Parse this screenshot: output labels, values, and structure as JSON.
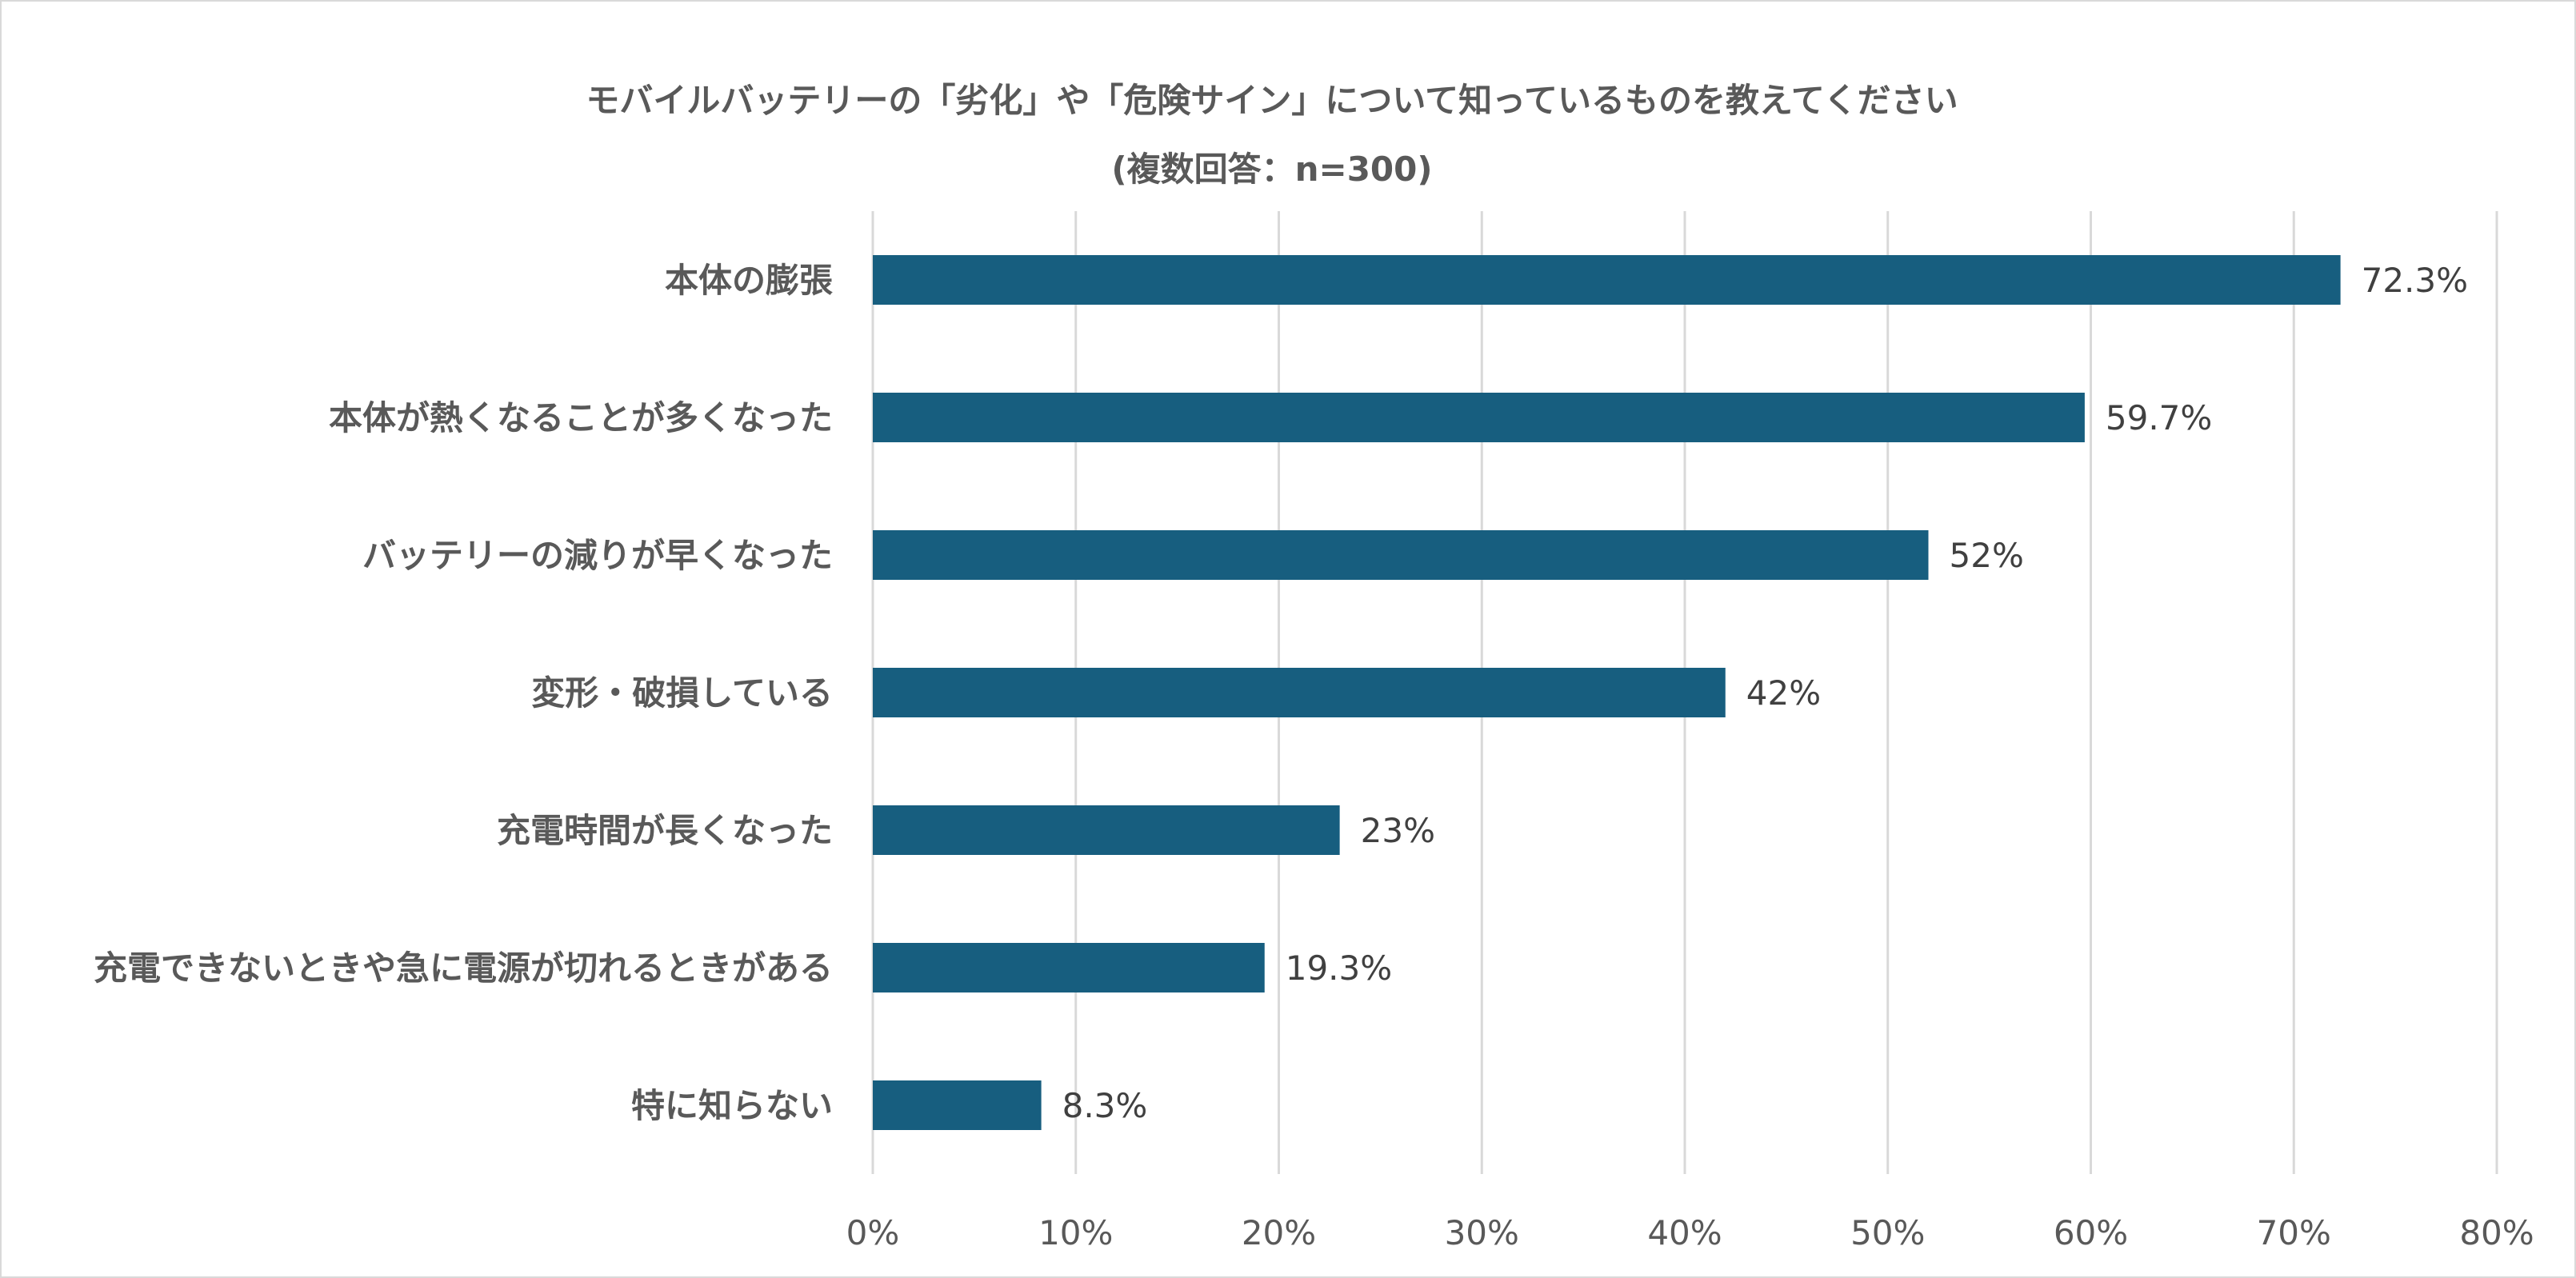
{
  "chart_data": {
    "type": "bar",
    "orientation": "horizontal",
    "title": "モバイルバッテリーの「劣化」や「危険サイン」について知っているものを教えてください",
    "subtitle": "(複数回答：n=300)",
    "categories": [
      "本体の膨張",
      "本体が熱くなることが多くなった",
      "バッテリーの減りが早くなった",
      "変形・破損している",
      "充電時間が長くなった",
      "充電できないときや急に電源が切れるときがある",
      "特に知らない"
    ],
    "values": [
      72.3,
      59.7,
      52,
      42,
      23,
      19.3,
      8.3
    ],
    "value_labels": [
      "72.3%",
      "59.7%",
      "52%",
      "42%",
      "23%",
      "19.3%",
      "8.3%"
    ],
    "xlim": [
      0,
      80
    ],
    "ticks": [
      0,
      10,
      20,
      30,
      40,
      50,
      60,
      70,
      80
    ],
    "tick_labels": [
      "0%",
      "10%",
      "20%",
      "30%",
      "40%",
      "50%",
      "60%",
      "70%",
      "80%"
    ],
    "xlabel": "",
    "ylabel": "",
    "grid": "vertical",
    "legend": "none",
    "bar_color": "#175e7f"
  }
}
